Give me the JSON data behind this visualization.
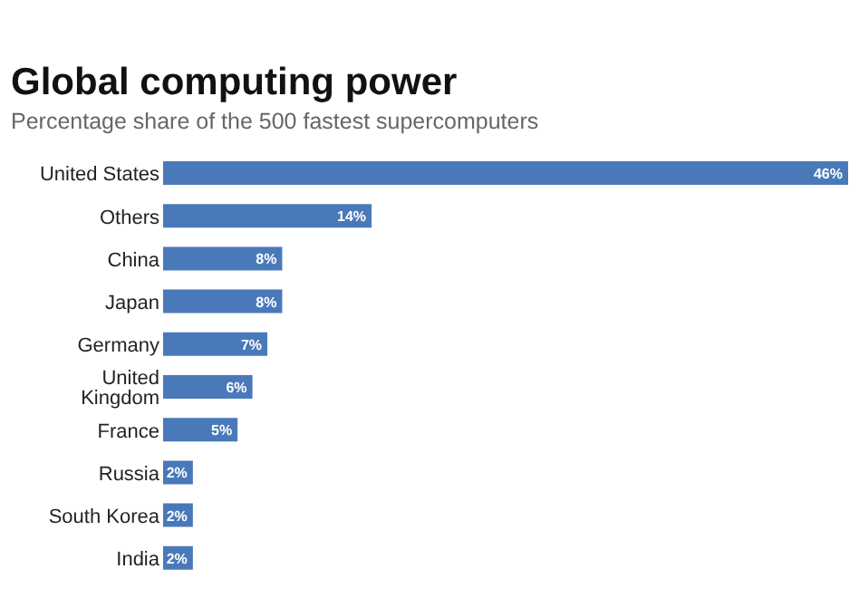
{
  "chart_data": {
    "type": "bar",
    "orientation": "horizontal",
    "title": "Global computing power",
    "subtitle": "Percentage share of the 500 fastest supercomputers",
    "categories": [
      "United States",
      "Others",
      "China",
      "Japan",
      "Germany",
      "United Kingdom",
      "France",
      "Russia",
      "South Korea",
      "India"
    ],
    "values": [
      46,
      14,
      8,
      8,
      7,
      6,
      5,
      2,
      2,
      2
    ],
    "value_labels": [
      "46%",
      "14%",
      "8%",
      "8%",
      "7%",
      "6%",
      "5%",
      "2%",
      "2%",
      "2%"
    ],
    "color": "#4a79ba",
    "grid": false,
    "legend": false
  }
}
